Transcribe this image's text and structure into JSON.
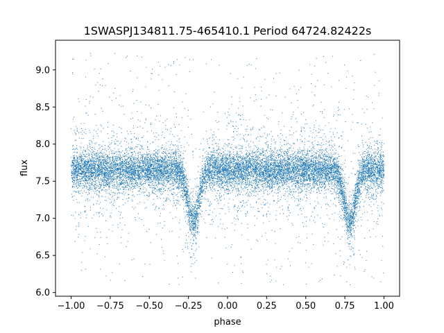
{
  "chart_data": {
    "type": "scatter",
    "title": "1SWASPJ134811.75-465410.1 Period 64724.82422s",
    "xlabel": "phase",
    "ylabel": "flux",
    "xlim": [
      -1.1,
      1.1
    ],
    "ylim": [
      5.95,
      9.4
    ],
    "xticks": [
      -1.0,
      -0.75,
      -0.5,
      -0.25,
      0.0,
      0.25,
      0.5,
      0.75,
      1.0
    ],
    "xtick_labels": [
      "−1.00",
      "−0.75",
      "−0.50",
      "−0.25",
      "0.00",
      "0.25",
      "0.50",
      "0.75",
      "1.00"
    ],
    "yticks": [
      6.0,
      6.5,
      7.0,
      7.5,
      8.0,
      8.5,
      9.0
    ],
    "ytick_labels": [
      "6.0",
      "6.5",
      "7.0",
      "7.5",
      "8.0",
      "8.5",
      "9.0"
    ],
    "grid": false,
    "series": [
      {
        "color": "#1f77b4",
        "marker_size": "tiny",
        "phase_range": [
          -1.0,
          1.0
        ],
        "baseline_flux": 7.65,
        "baseline_spread": 0.12,
        "outlier_range": [
          6.1,
          9.25
        ],
        "dips": [
          {
            "center_phase": -0.22,
            "min_flux": 6.95,
            "width_phase": 0.05
          },
          {
            "center_phase": 0.78,
            "min_flux": 6.95,
            "width_phase": 0.05
          }
        ],
        "point_count": 14000
      }
    ]
  }
}
